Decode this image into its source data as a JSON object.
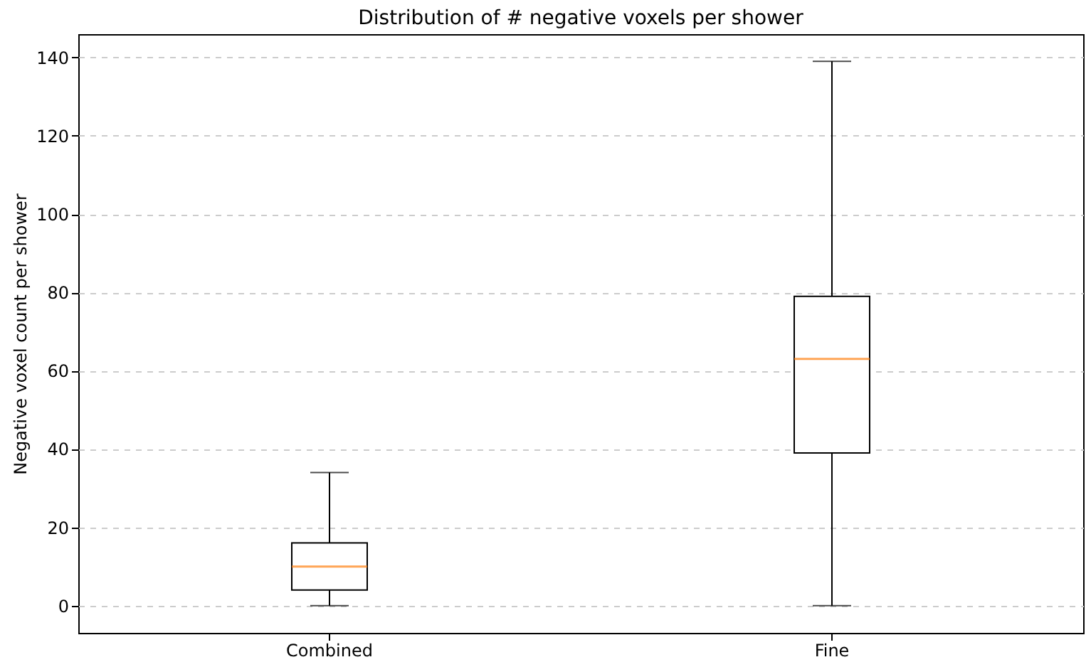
{
  "chart_data": {
    "type": "box",
    "title": "Distribution of # negative voxels per shower",
    "ylabel": "Negative voxel count per shower",
    "categories": [
      "Combined",
      "Fine"
    ],
    "boxes": [
      {
        "low": 0,
        "q1": 4,
        "median": 10,
        "q3": 16,
        "high": 34
      },
      {
        "low": 0,
        "q1": 39,
        "median": 63,
        "q3": 79,
        "high": 139
      }
    ],
    "ylim": [
      -6.95,
      145.95
    ],
    "yticks": [
      0,
      20,
      40,
      60,
      80,
      100,
      120,
      140
    ],
    "grid": "y"
  }
}
